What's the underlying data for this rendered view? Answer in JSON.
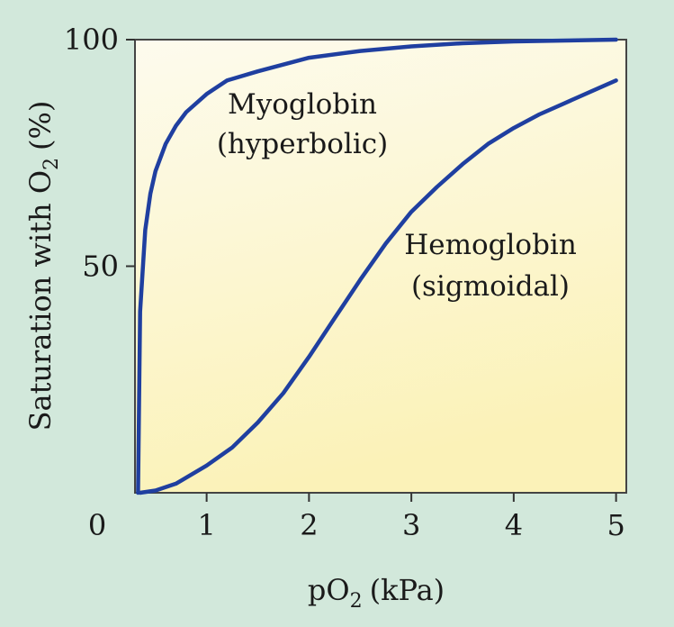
{
  "chart_data": {
    "type": "line",
    "title": "",
    "xlabel": "pO",
    "xlabel_sub": "2",
    "xlabel_unit": "(kPa)",
    "ylabel": "Saturation with O",
    "ylabel_sub": "2",
    "ylabel_unit": "(%)",
    "xlim": [
      0.3,
      5.1
    ],
    "ylim": [
      0,
      100
    ],
    "x_ticks": [
      1,
      2,
      3,
      4,
      5
    ],
    "y_ticks": [
      50,
      100
    ],
    "origin_label": "0",
    "grid": false,
    "series": [
      {
        "name": "Myoglobin",
        "annotation": [
          "Myoglobin",
          "(hyperbolic)"
        ],
        "color": "#1f3fa0",
        "x": [
          0.33,
          0.35,
          0.4,
          0.45,
          0.5,
          0.6,
          0.7,
          0.8,
          1.0,
          1.2,
          1.5,
          2.0,
          2.5,
          3.0,
          3.5,
          4.0,
          4.5,
          5.0
        ],
        "y": [
          0,
          40,
          58,
          66,
          71,
          77,
          81,
          84,
          88,
          91,
          93,
          96,
          97.5,
          98.5,
          99.2,
          99.6,
          99.8,
          100
        ]
      },
      {
        "name": "Hemoglobin",
        "annotation": [
          "Hemoglobin",
          "(sigmoidal)"
        ],
        "color": "#1f3fa0",
        "x": [
          0.35,
          0.5,
          0.7,
          1.0,
          1.25,
          1.5,
          1.75,
          2.0,
          2.25,
          2.5,
          2.75,
          3.0,
          3.25,
          3.5,
          3.75,
          4.0,
          4.25,
          4.5,
          4.75,
          5.0
        ],
        "y": [
          0,
          0.5,
          2,
          6,
          10,
          15.5,
          22,
          30,
          38.5,
          47,
          55,
          62,
          67.5,
          72.5,
          77,
          80.5,
          83.5,
          86,
          88.5,
          91
        ]
      }
    ]
  }
}
